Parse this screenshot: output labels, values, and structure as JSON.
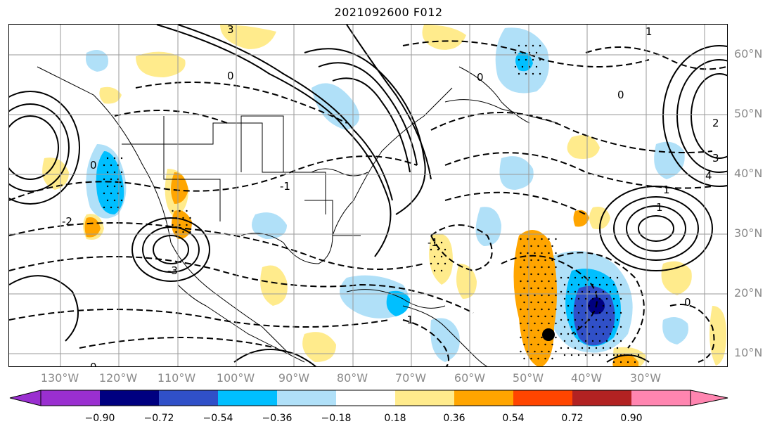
{
  "title": "2021092600 F012",
  "map": {
    "lat_labels": [
      "60°N",
      "50°N",
      "40°N",
      "30°N",
      "20°N",
      "10°N"
    ],
    "lon_labels": [
      "130°W",
      "120°W",
      "110°W",
      "100°W",
      "90°W",
      "80°W",
      "70°W",
      "60°W",
      "50°W",
      "40°W",
      "30°W"
    ],
    "contour_labels": [
      "3",
      "0",
      "0",
      "-1",
      "-2",
      "-3",
      "0",
      "1",
      "2",
      "3",
      "4",
      "1",
      "0",
      "-1",
      "0",
      "1",
      "-1",
      "0"
    ],
    "colors": {
      "coast": "#000000",
      "grid": "#9a9a9a"
    }
  },
  "colorbar": {
    "labels": [
      "−0.90",
      "−0.72",
      "−0.54",
      "−0.36",
      "−0.18",
      "0.18",
      "0.36",
      "0.54",
      "0.72",
      "0.90"
    ],
    "colors": [
      "#9a2fd0",
      "#000080",
      "#3050c8",
      "#00bfff",
      "#b0e0f8",
      "#ffffff",
      "#ffeb8c",
      "#ffa500",
      "#ff4500",
      "#b22222",
      "#ff85b0",
      "#ff85b0"
    ]
  }
}
